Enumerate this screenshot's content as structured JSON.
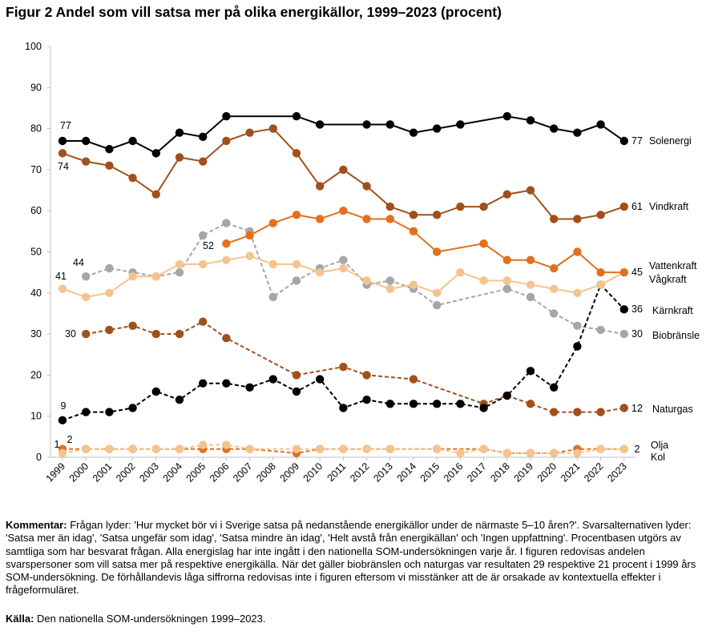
{
  "title": "Figur 2 Andel som vill satsa mer på olika energikällor, 1999–2023 (procent)",
  "comment": {
    "label": "Kommentar:",
    "text": " Frågan lyder: 'Hur mycket bör vi i Sverige satsa på nedanstående energikällor under de närmaste 5–10 åren?'. Svarsalternativen lyder: 'Satsa mer än idag', 'Satsa ungefär som idag', 'Satsa mindre än idag', 'Helt avstå från energikällan' och 'Ingen uppfattning'. Procentbasen utgörs av samtliga som har besvarat frågan. Alla energislag har inte ingått i den nationella SOM-undersökningen varje år. I figuren redovisas andelen svarspersoner som vill satsa mer på respektive energikälla. När det gäller biobränslen och naturgas var resultaten 29 respektive 21 procent i 1999 års SOM-undersökning. De förhållandevis låga siffrorna redovisas inte i figuren eftersom vi misstänker att de är orsakade av kontextuella effekter i frågeformuläret."
  },
  "source": {
    "label": "Källa:",
    "text": " Den nationella SOM-undersökningen 1999–2023."
  },
  "chart_data": {
    "type": "line",
    "ylim": [
      0,
      100
    ],
    "yticks": [
      0,
      10,
      20,
      30,
      40,
      50,
      60,
      70,
      80,
      90,
      100
    ],
    "x": [
      1999,
      2000,
      2001,
      2002,
      2003,
      2004,
      2005,
      2006,
      2007,
      2008,
      2009,
      2010,
      2011,
      2012,
      2013,
      2014,
      2015,
      2016,
      2017,
      2018,
      2019,
      2020,
      2021,
      2022,
      2023
    ],
    "grid": false,
    "legend": "end-of-line labels",
    "series": [
      {
        "name": "Solenergi",
        "color": "#000000",
        "dashed": false,
        "end_label": "77",
        "start_label": "77",
        "values": [
          77,
          77,
          75,
          77,
          74,
          79,
          78,
          83,
          null,
          null,
          83,
          81,
          null,
          81,
          81,
          79,
          80,
          81,
          null,
          83,
          82,
          80,
          79,
          81,
          77
        ]
      },
      {
        "name": "Vindkraft",
        "color": "#a0501c",
        "dashed": false,
        "end_label": "61",
        "start_label": "74",
        "values": [
          74,
          72,
          71,
          68,
          64,
          73,
          72,
          77,
          79,
          80,
          74,
          66,
          70,
          66,
          61,
          59,
          59,
          61,
          61,
          64,
          65,
          58,
          58,
          59,
          61
        ]
      },
      {
        "name": "Vattenkraft",
        "color": "#e2701f",
        "dashed": false,
        "end_label": "45",
        "start_label": "52",
        "values": [
          null,
          null,
          null,
          null,
          null,
          null,
          null,
          52,
          54,
          57,
          59,
          58,
          60,
          58,
          58,
          55,
          50,
          null,
          52,
          48,
          48,
          46,
          50,
          45,
          45
        ]
      },
      {
        "name": "Vågkraft",
        "color": "#f5c38e",
        "dashed": false,
        "end_label": "",
        "start_label": "41",
        "values": [
          41,
          39,
          40,
          44,
          44,
          47,
          47,
          48,
          49,
          47,
          47,
          45,
          46,
          43,
          41,
          42,
          40,
          45,
          43,
          43,
          42,
          41,
          40,
          42,
          45
        ]
      },
      {
        "name": "Kärnkraft",
        "color": "#000000",
        "dashed": true,
        "end_label": "36",
        "start_label": "9",
        "values": [
          9,
          11,
          11,
          12,
          16,
          14,
          18,
          18,
          17,
          19,
          16,
          19,
          12,
          14,
          13,
          13,
          13,
          13,
          12,
          15,
          21,
          17,
          27,
          42,
          36
        ]
      },
      {
        "name": "Biobränsle",
        "color": "#a6a6a6",
        "dashed": true,
        "end_label": "30",
        "start_label": "44",
        "values": [
          null,
          44,
          46,
          45,
          44,
          45,
          54,
          57,
          55,
          39,
          43,
          46,
          48,
          42,
          43,
          41,
          37,
          null,
          null,
          41,
          39,
          35,
          32,
          31,
          30
        ]
      },
      {
        "name": "Naturgas",
        "color": "#a0501c",
        "dashed": true,
        "end_label": "12",
        "start_label": "30",
        "values": [
          null,
          30,
          31,
          32,
          30,
          30,
          33,
          29,
          null,
          null,
          20,
          null,
          22,
          20,
          null,
          19,
          null,
          null,
          13,
          15,
          13,
          11,
          11,
          11,
          12
        ]
      },
      {
        "name": "Olja",
        "color": "#f5c38e",
        "dashed": true,
        "end_label": "",
        "start_label": "1",
        "values": [
          1,
          2,
          2,
          2,
          2,
          2,
          3,
          3,
          2,
          null,
          2,
          2,
          2,
          2,
          2,
          null,
          2,
          1,
          2,
          1,
          1,
          1,
          1,
          2,
          2
        ]
      },
      {
        "name": "Kol",
        "color": "#e2701f",
        "dashed": true,
        "end_label": "2",
        "start_label": "2",
        "values": [
          2,
          2,
          2,
          2,
          2,
          2,
          2,
          2,
          2,
          null,
          1,
          2,
          2,
          2,
          2,
          null,
          2,
          null,
          2,
          1,
          1,
          1,
          2,
          2,
          2
        ]
      }
    ]
  }
}
